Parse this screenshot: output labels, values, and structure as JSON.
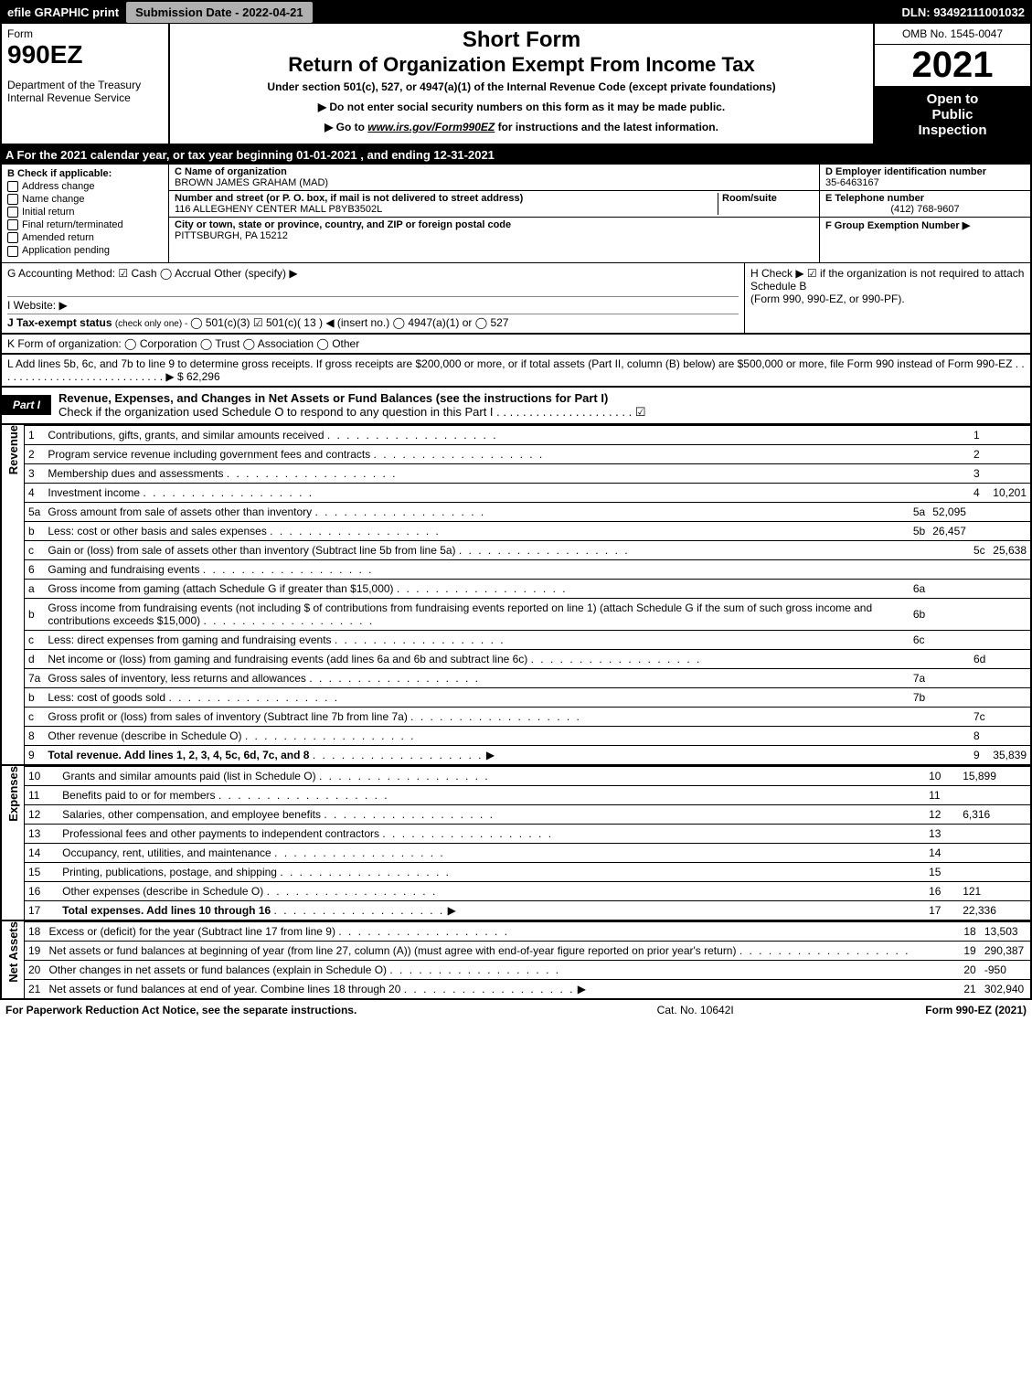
{
  "header": {
    "efile": "efile GRAPHIC print",
    "submission": "Submission Date - 2022-04-21",
    "dln": "DLN: 93492111001032"
  },
  "top": {
    "form_word": "Form",
    "form_num": "990EZ",
    "dept1": "Department of the Treasury",
    "dept2": "Internal Revenue Service",
    "short_form": "Short Form",
    "main_title": "Return of Organization Exempt From Income Tax",
    "subtitle": "Under section 501(c), 527, or 4947(a)(1) of the Internal Revenue Code (except private foundations)",
    "note1": "▶ Do not enter social security numbers on this form as it may be made public.",
    "note2_pre": "▶ Go to ",
    "note2_link": "www.irs.gov/Form990EZ",
    "note2_post": " for instructions and the latest information.",
    "omb": "OMB No. 1545-0047",
    "year": "2021",
    "insp1": "Open to",
    "insp2": "Public",
    "insp3": "Inspection"
  },
  "rowA": "A  For the 2021 calendar year, or tax year beginning 01-01-2021 , and ending 12-31-2021",
  "colB": {
    "title": "B  Check if applicable:",
    "items": [
      "Address change",
      "Name change",
      "Initial return",
      "Final return/terminated",
      "Amended return",
      "Application pending"
    ]
  },
  "colC": {
    "name_label": "C Name of organization",
    "name": "BROWN JAMES GRAHAM (MAD)",
    "street_label": "Number and street (or P. O. box, if mail is not delivered to street address)",
    "room_label": "Room/suite",
    "street": "116 ALLEGHENY CENTER MALL P8YB3502L",
    "city_label": "City or town, state or province, country, and ZIP or foreign postal code",
    "city": "PITTSBURGH, PA  15212"
  },
  "colDEF": {
    "d_label": "D Employer identification number",
    "d_val": "35-6463167",
    "e_label": "E Telephone number",
    "e_val": "(412) 768-9607",
    "f_label": "F Group Exemption Number  ▶"
  },
  "gh": {
    "g": "G Accounting Method:   ☑ Cash   ◯ Accrual   Other (specify) ▶",
    "i": "I Website: ▶",
    "j_pre": "J Tax-exempt status ",
    "j_small": "(check only one) - ",
    "j_opts": "◯ 501(c)(3)  ☑  501(c)( 13 ) ◀ (insert no.)  ◯ 4947(a)(1) or  ◯ 527",
    "h1": "H  Check ▶  ☑  if the organization is not required to attach Schedule B",
    "h2": "(Form 990, 990-EZ, or 990-PF)."
  },
  "k": "K Form of organization:   ◯ Corporation   ◯ Trust   ◯ Association   ◯ Other",
  "l": {
    "text": "L Add lines 5b, 6c, and 7b to line 9 to determine gross receipts. If gross receipts are $200,000 or more, or if total assets (Part II, column (B) below) are $500,000 or more, file Form 990 instead of Form 990-EZ  .  .  .  .  .  .  .  .  .  .  .  .  .  .  .  .  .  .  .  .  .  .  .  .  .  .  .  .  ▶ ",
    "val": "$ 62,296"
  },
  "part1": {
    "label": "Part I",
    "title": "Revenue, Expenses, and Changes in Net Assets or Fund Balances (see the instructions for Part I)",
    "check": "Check if the organization used Schedule O to respond to any question in this Part I  .  .  .  .  .  .  .  .  .  .  .  .  .  .  .  .  .  .  .  .  .  ☑"
  },
  "revenue": {
    "tab": "Revenue",
    "lines": [
      {
        "n": "1",
        "d": "Contributions, gifts, grants, and similar amounts received",
        "r": "1",
        "v": ""
      },
      {
        "n": "2",
        "d": "Program service revenue including government fees and contracts",
        "r": "2",
        "v": ""
      },
      {
        "n": "3",
        "d": "Membership dues and assessments",
        "r": "3",
        "v": ""
      },
      {
        "n": "4",
        "d": "Investment income",
        "r": "4",
        "v": "10,201"
      },
      {
        "n": "5a",
        "d": "Gross amount from sale of assets other than inventory",
        "ml": "5a",
        "mv": "52,095"
      },
      {
        "n": "b",
        "d": "Less: cost or other basis and sales expenses",
        "ml": "5b",
        "mv": "26,457"
      },
      {
        "n": "c",
        "d": "Gain or (loss) from sale of assets other than inventory (Subtract line 5b from line 5a)",
        "r": "5c",
        "v": "25,638"
      },
      {
        "n": "6",
        "d": "Gaming and fundraising events"
      },
      {
        "n": "a",
        "d": "Gross income from gaming (attach Schedule G if greater than $15,000)",
        "ml": "6a",
        "mv": ""
      },
      {
        "n": "b",
        "d": "Gross income from fundraising events (not including $                of contributions from fundraising events reported on line 1) (attach Schedule G if the sum of such gross income and contributions exceeds $15,000)",
        "ml": "6b",
        "mv": ""
      },
      {
        "n": "c",
        "d": "Less: direct expenses from gaming and fundraising events",
        "ml": "6c",
        "mv": ""
      },
      {
        "n": "d",
        "d": "Net income or (loss) from gaming and fundraising events (add lines 6a and 6b and subtract line 6c)",
        "r": "6d",
        "v": ""
      },
      {
        "n": "7a",
        "d": "Gross sales of inventory, less returns and allowances",
        "ml": "7a",
        "mv": ""
      },
      {
        "n": "b",
        "d": "Less: cost of goods sold",
        "ml": "7b",
        "mv": ""
      },
      {
        "n": "c",
        "d": "Gross profit or (loss) from sales of inventory (Subtract line 7b from line 7a)",
        "r": "7c",
        "v": ""
      },
      {
        "n": "8",
        "d": "Other revenue (describe in Schedule O)",
        "r": "8",
        "v": ""
      },
      {
        "n": "9",
        "d": "Total revenue. Add lines 1, 2, 3, 4, 5c, 6d, 7c, and 8",
        "r": "9",
        "v": "35,839",
        "bold": true,
        "arrow": true
      }
    ]
  },
  "expenses": {
    "tab": "Expenses",
    "lines": [
      {
        "n": "10",
        "d": "Grants and similar amounts paid (list in Schedule O)",
        "r": "10",
        "v": "15,899"
      },
      {
        "n": "11",
        "d": "Benefits paid to or for members",
        "r": "11",
        "v": ""
      },
      {
        "n": "12",
        "d": "Salaries, other compensation, and employee benefits",
        "r": "12",
        "v": "6,316"
      },
      {
        "n": "13",
        "d": "Professional fees and other payments to independent contractors",
        "r": "13",
        "v": ""
      },
      {
        "n": "14",
        "d": "Occupancy, rent, utilities, and maintenance",
        "r": "14",
        "v": ""
      },
      {
        "n": "15",
        "d": "Printing, publications, postage, and shipping",
        "r": "15",
        "v": ""
      },
      {
        "n": "16",
        "d": "Other expenses (describe in Schedule O)",
        "r": "16",
        "v": "121"
      },
      {
        "n": "17",
        "d": "Total expenses. Add lines 10 through 16",
        "r": "17",
        "v": "22,336",
        "bold": true,
        "arrow": true
      }
    ]
  },
  "netassets": {
    "tab": "Net Assets",
    "lines": [
      {
        "n": "18",
        "d": "Excess or (deficit) for the year (Subtract line 17 from line 9)",
        "r": "18",
        "v": "13,503"
      },
      {
        "n": "19",
        "d": "Net assets or fund balances at beginning of year (from line 27, column (A)) (must agree with end-of-year figure reported on prior year's return)",
        "r": "19",
        "v": "290,387"
      },
      {
        "n": "20",
        "d": "Other changes in net assets or fund balances (explain in Schedule O)",
        "r": "20",
        "v": "-950"
      },
      {
        "n": "21",
        "d": "Net assets or fund balances at end of year. Combine lines 18 through 20",
        "r": "21",
        "v": "302,940",
        "arrow": true
      }
    ]
  },
  "footer": {
    "left": "For Paperwork Reduction Act Notice, see the separate instructions.",
    "mid": "Cat. No. 10642I",
    "right_pre": "Form ",
    "right_bold": "990-EZ",
    "right_post": " (2021)"
  }
}
